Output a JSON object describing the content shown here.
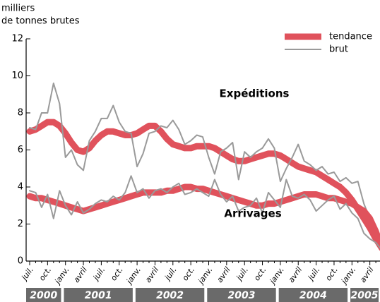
{
  "chart_data": {
    "type": "line",
    "y_label": [
      "milliers",
      "de tonnes brutes"
    ],
    "categories": [
      "juil.",
      null,
      null,
      "oct.",
      null,
      null,
      "janv.",
      null,
      null,
      "avril",
      null,
      null,
      "juil.",
      null,
      null,
      "oct.",
      null,
      null,
      "janv.",
      null,
      null,
      "avril",
      null,
      null,
      "juil.",
      null,
      null,
      "oct.",
      null,
      null,
      "janv.",
      null,
      null,
      "avril",
      null,
      null,
      "juil.",
      null,
      null,
      "oct.",
      null,
      null,
      "janv.",
      null,
      null,
      "avril",
      null,
      null,
      "juil.",
      null,
      null,
      "oct.",
      null,
      null,
      "janv.",
      null,
      null,
      "avril",
      null,
      null
    ],
    "years": [
      "2000",
      "2001",
      "2002",
      "2003",
      "2004",
      "2005"
    ],
    "ylim": [
      0,
      12
    ],
    "yticks": [
      0,
      2,
      4,
      6,
      8,
      10,
      12
    ],
    "grid": false,
    "legend": [
      {
        "name": "tendance",
        "color": "#e0525c"
      },
      {
        "name": "brut",
        "color": "#9a9a9a"
      }
    ],
    "series": [
      {
        "name": "Expéditions",
        "tendance": [
          7.0,
          7.1,
          7.3,
          7.5,
          7.5,
          7.3,
          6.9,
          6.4,
          6.0,
          5.9,
          6.1,
          6.5,
          6.8,
          7.0,
          7.0,
          6.9,
          6.8,
          6.8,
          6.9,
          7.1,
          7.3,
          7.3,
          7.0,
          6.6,
          6.3,
          6.2,
          6.1,
          6.1,
          6.2,
          6.2,
          6.2,
          6.1,
          5.9,
          5.7,
          5.5,
          5.4,
          5.4,
          5.5,
          5.6,
          5.7,
          5.8,
          5.8,
          5.7,
          5.5,
          5.3,
          5.1,
          5.0,
          4.9,
          4.8,
          4.6,
          4.4,
          4.2,
          4.0,
          3.7,
          3.3,
          2.8,
          2.3,
          1.8,
          1.2,
          0.7
        ],
        "brut": [
          7.2,
          7.1,
          8.0,
          8.0,
          9.6,
          8.5,
          5.6,
          6.0,
          5.2,
          4.9,
          6.5,
          7.0,
          7.7,
          7.7,
          8.4,
          7.5,
          7.0,
          6.9,
          5.1,
          5.8,
          6.9,
          7.0,
          7.3,
          7.2,
          7.6,
          7.1,
          6.3,
          6.5,
          6.8,
          6.7,
          5.6,
          4.7,
          5.9,
          6.1,
          6.4,
          4.4,
          5.9,
          5.6,
          5.9,
          6.1,
          6.6,
          6.1,
          4.3,
          5.0,
          5.6,
          6.3,
          5.4,
          5.2,
          4.9,
          5.1,
          4.7,
          4.8,
          4.3,
          4.5,
          4.2,
          4.3,
          3.1,
          2.3,
          1.5,
          0.8
        ]
      },
      {
        "name": "Arrivages",
        "tendance": [
          3.5,
          3.4,
          3.4,
          3.3,
          3.2,
          3.1,
          3.0,
          2.9,
          2.8,
          2.7,
          2.8,
          2.9,
          3.0,
          3.1,
          3.2,
          3.3,
          3.4,
          3.5,
          3.6,
          3.7,
          3.7,
          3.7,
          3.7,
          3.8,
          3.8,
          3.9,
          4.0,
          4.0,
          3.9,
          3.9,
          3.8,
          3.7,
          3.6,
          3.5,
          3.4,
          3.3,
          3.2,
          3.1,
          3.0,
          3.0,
          3.1,
          3.1,
          3.2,
          3.3,
          3.4,
          3.5,
          3.6,
          3.6,
          3.6,
          3.5,
          3.4,
          3.4,
          3.3,
          3.2,
          3.1,
          2.9,
          2.7,
          2.3,
          1.6,
          0.7
        ],
        "brut": [
          3.8,
          3.7,
          2.9,
          3.6,
          2.3,
          3.8,
          3.0,
          2.5,
          3.2,
          2.6,
          2.8,
          3.1,
          3.3,
          3.2,
          3.5,
          3.3,
          3.7,
          4.6,
          3.7,
          3.9,
          3.4,
          3.8,
          3.9,
          3.7,
          4.0,
          4.2,
          3.6,
          3.7,
          3.9,
          3.7,
          3.5,
          4.4,
          3.6,
          3.2,
          3.5,
          2.7,
          2.9,
          3.0,
          3.4,
          2.6,
          3.7,
          3.3,
          2.9,
          4.4,
          3.5,
          3.4,
          3.6,
          3.3,
          2.7,
          3.0,
          3.3,
          3.5,
          2.8,
          3.1,
          2.6,
          2.3,
          1.5,
          1.2,
          1.0,
          0.6
        ]
      }
    ]
  }
}
